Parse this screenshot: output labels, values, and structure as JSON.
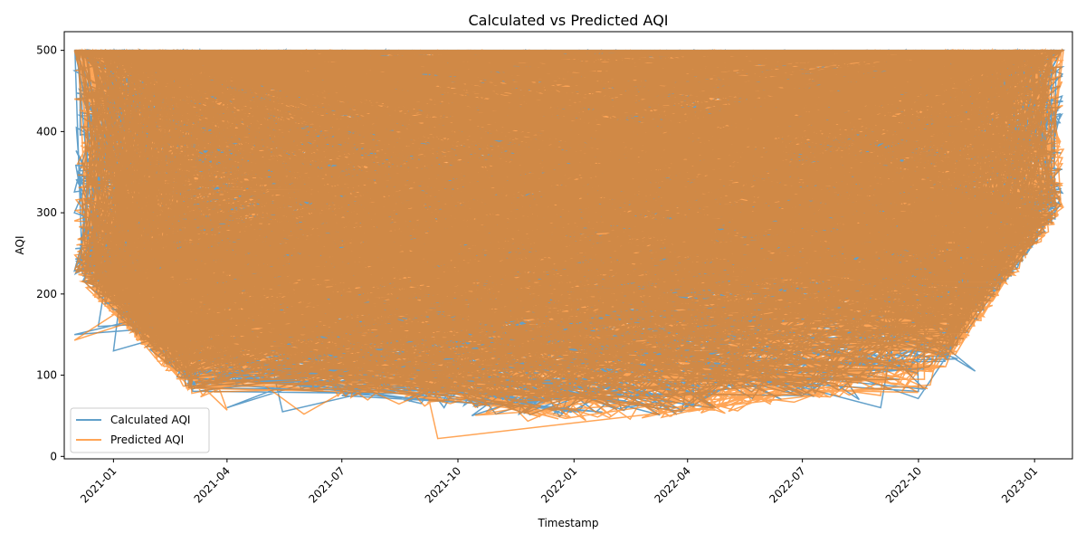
{
  "chart_data": {
    "type": "line",
    "title": "Calculated vs Predicted AQI",
    "xlabel": "Timestamp",
    "ylabel": "AQI",
    "x_axis_type": "date",
    "xlim": [
      "2020-11-23",
      "2023-01-31"
    ],
    "ylim": [
      -3,
      523
    ],
    "x_ticks": [
      "2021-01-01",
      "2021-04-01",
      "2021-07-01",
      "2021-10-01",
      "2022-01-01",
      "2022-04-01",
      "2022-07-01",
      "2022-10-01",
      "2023-01-01"
    ],
    "x_tick_labels": [
      "2021-01",
      "2021-04",
      "2021-07",
      "2021-10",
      "2022-01",
      "2022-04",
      "2022-07",
      "2022-10",
      "2023-01"
    ],
    "x_tick_rotation": 45,
    "y_ticks": [
      0,
      100,
      200,
      300,
      400,
      500
    ],
    "y_tick_labels": [
      "0",
      "100",
      "200",
      "300",
      "400",
      "500"
    ],
    "grid": false,
    "legend_position": "lower-left",
    "date_range": [
      "2020-12-01",
      "2023-01-24"
    ],
    "series": [
      {
        "name": "Calculated AQI",
        "color": "#1f77b4",
        "opacity": 0.7,
        "description_range": [
          50,
          500
        ],
        "points": [
          [
            "2020-12-01",
            500
          ],
          [
            "2020-12-01",
            150
          ],
          [
            "2020-12-01",
            300
          ],
          [
            "2020-12-01",
            475
          ],
          [
            "2020-12-05",
            420
          ],
          [
            "2020-12-12",
            230
          ],
          [
            "2020-12-20",
            160
          ],
          [
            "2020-12-28",
            330
          ],
          [
            "2021-01-01",
            130
          ],
          [
            "2021-01-15",
            270
          ],
          [
            "2021-02-01",
            180
          ],
          [
            "2021-02-15",
            300
          ],
          [
            "2021-03-01",
            120
          ],
          [
            "2021-03-15",
            210
          ],
          [
            "2021-04-01",
            60
          ],
          [
            "2021-04-15",
            150
          ],
          [
            "2021-05-01",
            90
          ],
          [
            "2021-05-15",
            55
          ],
          [
            "2021-06-01",
            110
          ],
          [
            "2021-07-01",
            75
          ],
          [
            "2021-08-01",
            95
          ],
          [
            "2021-09-01",
            70
          ],
          [
            "2021-09-20",
            60
          ],
          [
            "2021-10-01",
            80
          ],
          [
            "2021-10-12",
            50
          ],
          [
            "2021-11-01",
            85
          ],
          [
            "2022-01-01",
            90
          ],
          [
            "2022-04-01",
            95
          ],
          [
            "2022-07-01",
            75
          ],
          [
            "2022-08-15",
            70
          ],
          [
            "2022-09-01",
            60
          ],
          [
            "2022-09-15",
            110
          ],
          [
            "2022-10-01",
            80
          ],
          [
            "2022-10-20",
            150
          ],
          [
            "2022-11-01",
            120
          ],
          [
            "2022-11-15",
            105
          ],
          [
            "2022-12-01",
            220
          ],
          [
            "2022-12-15",
            260
          ],
          [
            "2023-01-01",
            300
          ],
          [
            "2023-01-10",
            380
          ],
          [
            "2023-01-18",
            480
          ],
          [
            "2023-01-24",
            500
          ]
        ]
      },
      {
        "name": "Predicted AQI",
        "color": "#ff7f0e",
        "opacity": 0.7,
        "description_range": [
          22,
          500
        ],
        "points": [
          [
            "2020-12-01",
            500
          ],
          [
            "2020-12-01",
            143
          ],
          [
            "2020-12-01",
            290
          ],
          [
            "2020-12-01",
            440
          ],
          [
            "2020-12-10",
            380
          ],
          [
            "2020-12-20",
            230
          ],
          [
            "2021-01-01",
            190
          ],
          [
            "2021-01-20",
            320
          ],
          [
            "2021-02-10",
            170
          ],
          [
            "2021-03-01",
            110
          ],
          [
            "2021-03-20",
            200
          ],
          [
            "2021-04-01",
            57
          ],
          [
            "2021-05-01",
            100
          ],
          [
            "2021-06-01",
            52
          ],
          [
            "2021-07-01",
            90
          ],
          [
            "2021-08-01",
            110
          ],
          [
            "2021-09-01",
            80
          ],
          [
            "2021-09-15",
            22
          ],
          [
            "2021-09-25",
            65
          ],
          [
            "2021-10-15",
            90
          ],
          [
            "2022-01-01",
            100
          ],
          [
            "2022-04-01",
            110
          ],
          [
            "2022-07-01",
            90
          ],
          [
            "2022-08-15",
            95
          ],
          [
            "2022-09-01",
            75
          ],
          [
            "2022-10-01",
            100
          ],
          [
            "2022-10-15",
            180
          ],
          [
            "2022-11-01",
            210
          ],
          [
            "2022-12-01",
            260
          ],
          [
            "2022-12-20",
            300
          ],
          [
            "2023-01-01",
            350
          ],
          [
            "2023-01-12",
            420
          ],
          [
            "2023-01-24",
            500
          ]
        ]
      }
    ]
  }
}
